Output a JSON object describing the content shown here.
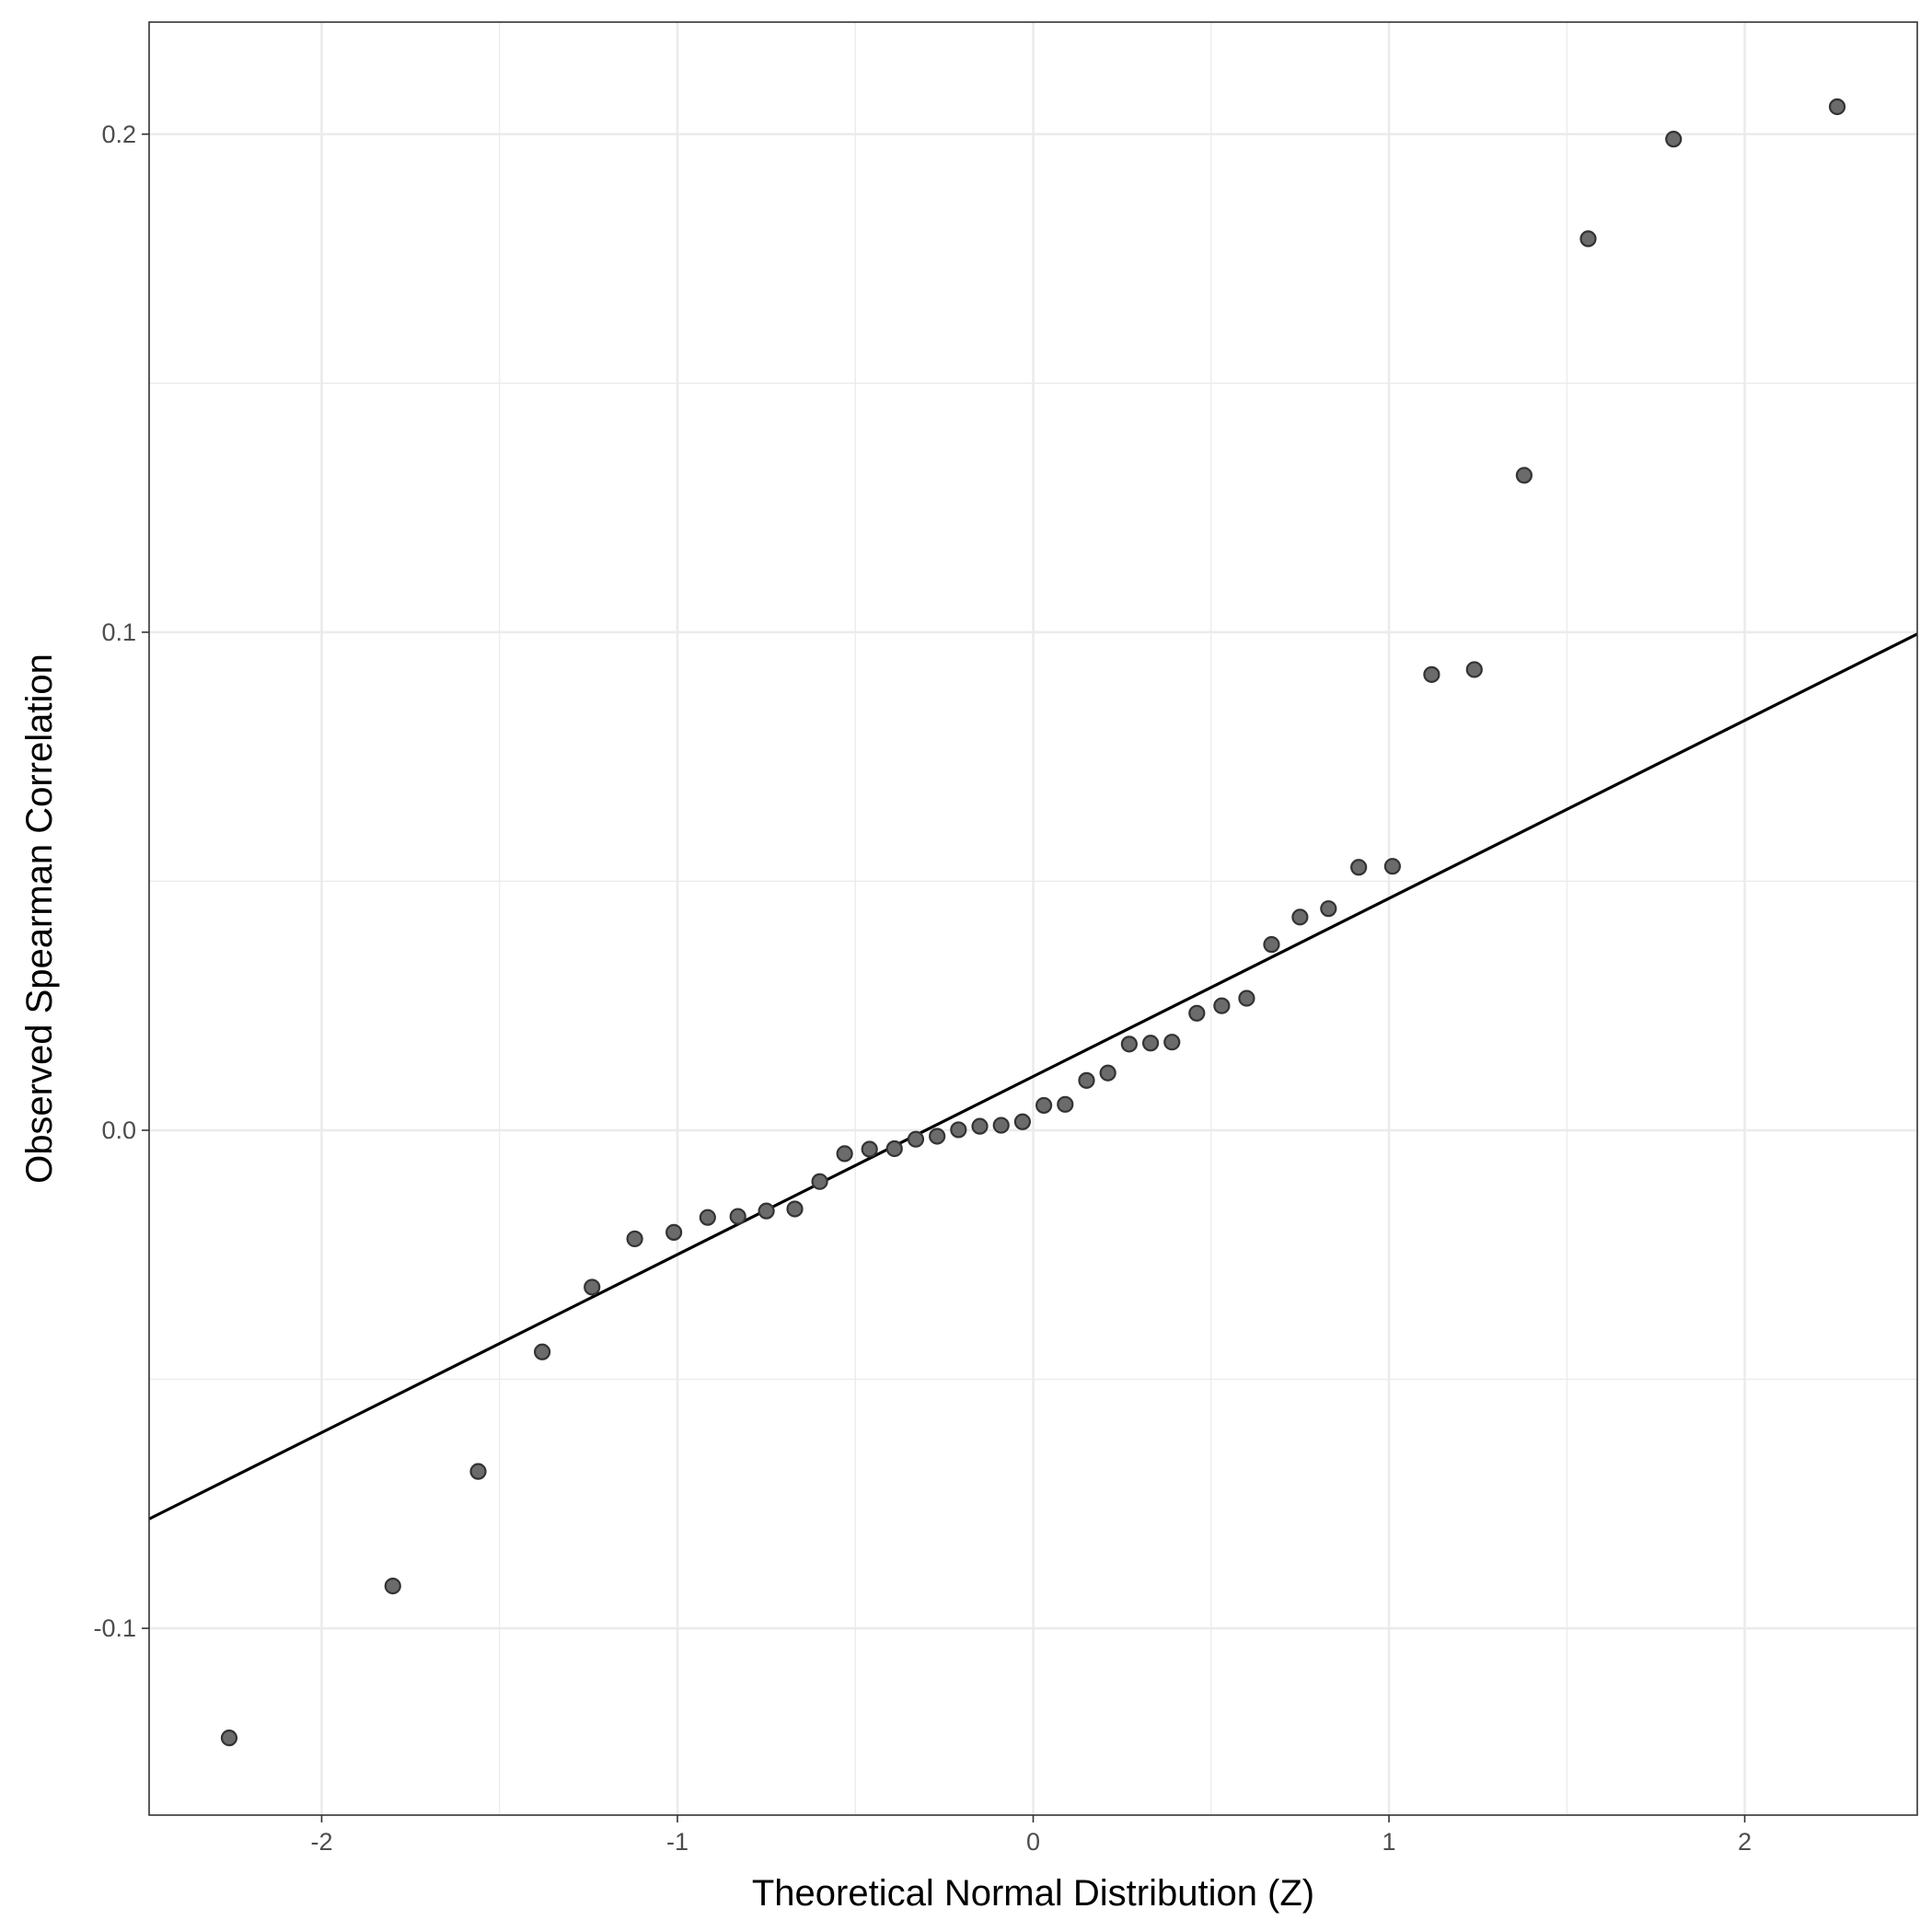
{
  "chart_data": {
    "type": "scatter",
    "title": "",
    "xlabel": "Theoretical Normal Distribution (Z)",
    "ylabel": "Observed Spearman Correlation",
    "xlim": [
      -2.485,
      2.485
    ],
    "ylim": [
      -0.1375,
      0.2225
    ],
    "x_ticks": [
      -2,
      -1,
      0,
      1,
      2
    ],
    "x_tick_labels": [
      "-2",
      "-1",
      "0",
      "1",
      "2"
    ],
    "y_ticks": [
      -0.1,
      0.0,
      0.1,
      0.2
    ],
    "y_tick_labels": [
      "-0.1",
      "0.0",
      "0.1",
      "0.2"
    ],
    "grid": true,
    "legend": "none",
    "colors": {
      "point_fill": "#6b6b6b",
      "point_stroke": "#333333",
      "line": "#000000",
      "grid": "#ebebeb"
    },
    "reference_line": {
      "slope": 0.03575,
      "intercept": 0.0108
    },
    "points": [
      {
        "x": -2.26,
        "y": -0.122
      },
      {
        "x": -1.8,
        "y": -0.0915
      },
      {
        "x": -1.56,
        "y": -0.0685
      },
      {
        "x": -1.38,
        "y": -0.0445
      },
      {
        "x": -1.24,
        "y": -0.0315
      },
      {
        "x": -1.12,
        "y": -0.0218
      },
      {
        "x": -1.01,
        "y": -0.0205
      },
      {
        "x": -0.915,
        "y": -0.0175
      },
      {
        "x": -0.83,
        "y": -0.0173
      },
      {
        "x": -0.75,
        "y": -0.0162
      },
      {
        "x": -0.67,
        "y": -0.0158
      },
      {
        "x": -0.6,
        "y": -0.0103
      },
      {
        "x": -0.53,
        "y": -0.0047
      },
      {
        "x": -0.46,
        "y": -0.0038
      },
      {
        "x": -0.39,
        "y": -0.0037
      },
      {
        "x": -0.33,
        "y": -0.0018
      },
      {
        "x": -0.27,
        "y": -0.0012
      },
      {
        "x": -0.21,
        "y": 0.0001
      },
      {
        "x": -0.15,
        "y": 0.0008
      },
      {
        "x": -0.09,
        "y": 0.001
      },
      {
        "x": -0.03,
        "y": 0.0017
      },
      {
        "x": 0.03,
        "y": 0.005
      },
      {
        "x": 0.09,
        "y": 0.0052
      },
      {
        "x": 0.15,
        "y": 0.01
      },
      {
        "x": 0.21,
        "y": 0.0115
      },
      {
        "x": 0.27,
        "y": 0.0173
      },
      {
        "x": 0.33,
        "y": 0.0175
      },
      {
        "x": 0.39,
        "y": 0.0177
      },
      {
        "x": 0.46,
        "y": 0.0235
      },
      {
        "x": 0.53,
        "y": 0.025
      },
      {
        "x": 0.6,
        "y": 0.0265
      },
      {
        "x": 0.67,
        "y": 0.0373
      },
      {
        "x": 0.75,
        "y": 0.0428
      },
      {
        "x": 0.83,
        "y": 0.0445
      },
      {
        "x": 0.915,
        "y": 0.0528
      },
      {
        "x": 1.01,
        "y": 0.053
      },
      {
        "x": 1.12,
        "y": 0.0915
      },
      {
        "x": 1.24,
        "y": 0.0925
      },
      {
        "x": 1.38,
        "y": 0.1315
      },
      {
        "x": 1.56,
        "y": 0.179
      },
      {
        "x": 1.8,
        "y": 0.199
      },
      {
        "x": 2.26,
        "y": 0.2055
      }
    ]
  }
}
